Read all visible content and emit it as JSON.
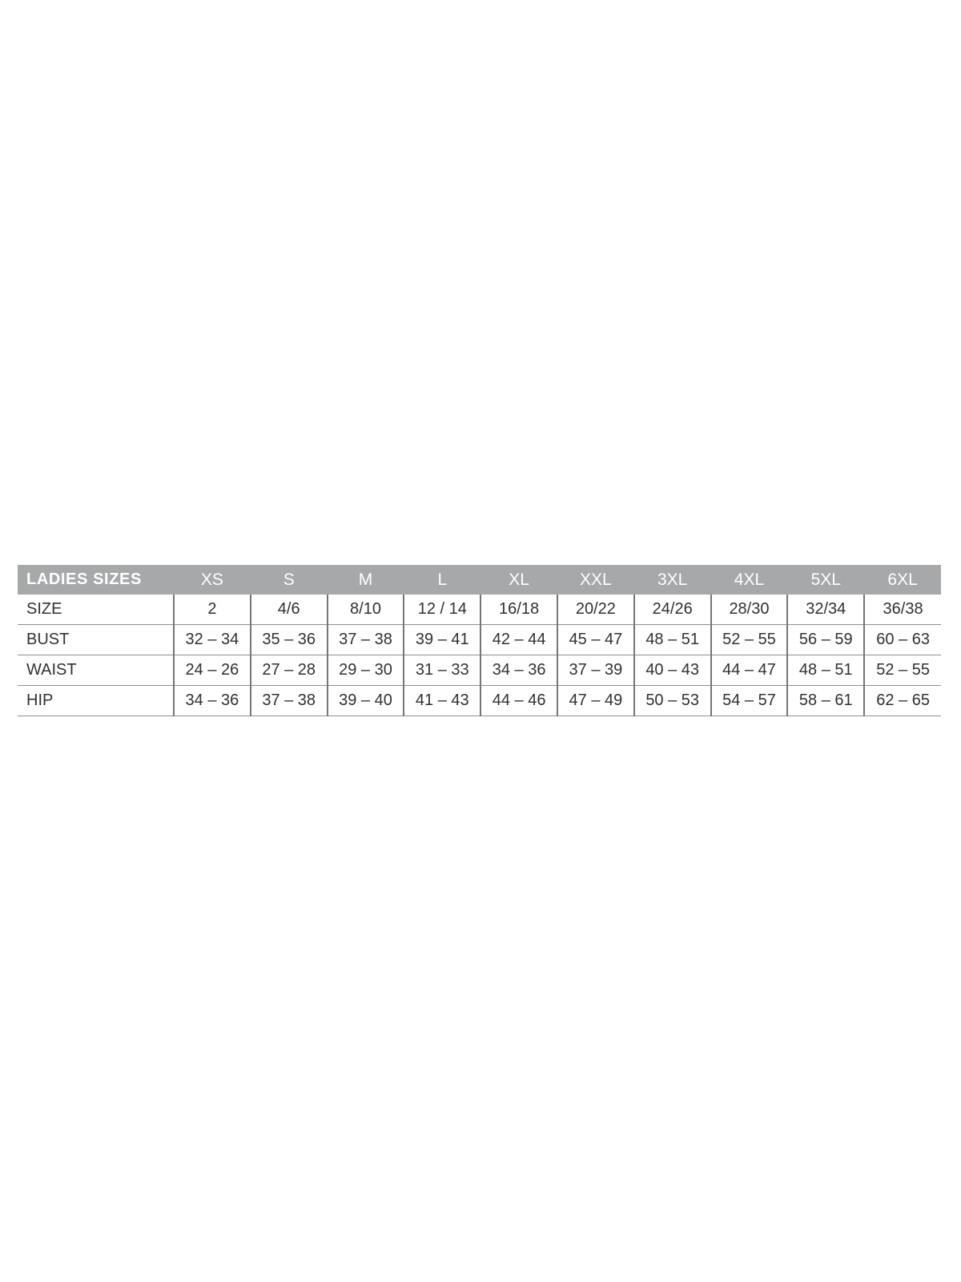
{
  "table": {
    "title": "LADIES SIZES",
    "header_bg": "#a6a8aa",
    "header_text_color": "#ffffff",
    "body_text_color": "#313133",
    "divider_color": "#76767a",
    "row_line_color": "#8f8f91",
    "columns": [
      "XS",
      "S",
      "M",
      "L",
      "XL",
      "XXL",
      "3XL",
      "4XL",
      "5XL",
      "6XL"
    ],
    "rows": [
      {
        "label": "SIZE",
        "values": [
          "2",
          "4/6",
          "8/10",
          "12 / 14",
          "16/18",
          "20/22",
          "24/26",
          "28/30",
          "32/34",
          "36/38"
        ]
      },
      {
        "label": "BUST",
        "values": [
          "32 – 34",
          "35 – 36",
          "37 – 38",
          "39 – 41",
          "42 – 44",
          "45 – 47",
          "48 – 51",
          "52 – 55",
          "56 – 59",
          "60 – 63"
        ]
      },
      {
        "label": "WAIST",
        "values": [
          "24 – 26",
          "27 – 28",
          "29 – 30",
          "31 – 33",
          "34 – 36",
          "37 – 39",
          "40 – 43",
          "44 – 47",
          "48 – 51",
          "52 – 55"
        ]
      },
      {
        "label": "HIP",
        "values": [
          "34 – 36",
          "37 – 38",
          "39 – 40",
          "41 – 43",
          "44 – 46",
          "47 – 49",
          "50 – 53",
          "54 – 57",
          "58 – 61",
          "62 – 65"
        ]
      }
    ]
  }
}
